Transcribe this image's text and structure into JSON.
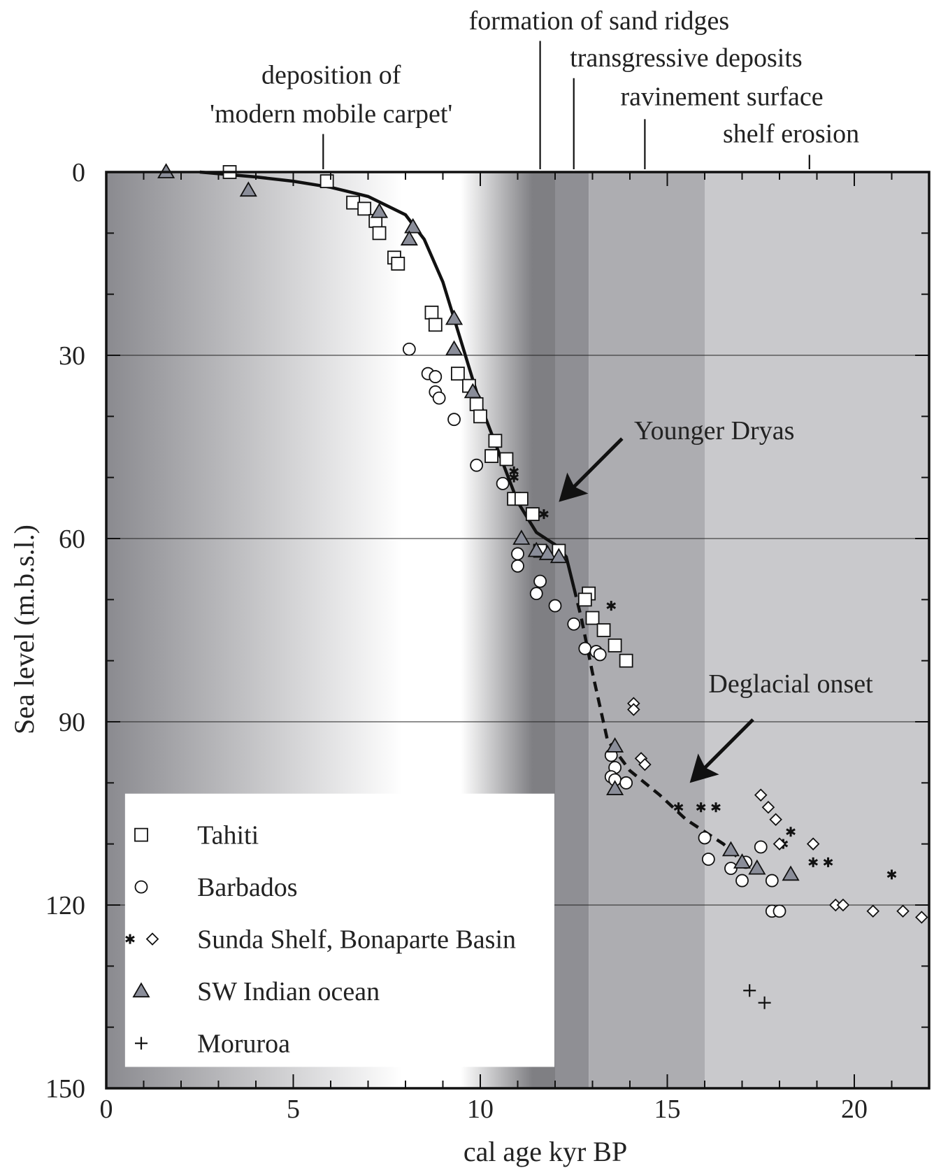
{
  "chart_data": {
    "type": "scatter",
    "xlabel": "cal age kyr BP",
    "ylabel": "Sea level (m.b.s.l.)",
    "xlim": [
      0,
      22
    ],
    "ylim": [
      0,
      150
    ],
    "y_inverted": true,
    "xticks": [
      0,
      5,
      10,
      15,
      20
    ],
    "xticks_minor": [
      1,
      2,
      3,
      4,
      6,
      7,
      8,
      9,
      11,
      12,
      13,
      14,
      16,
      17,
      18,
      19,
      21
    ],
    "yticks": [
      0,
      30,
      60,
      90,
      120,
      150
    ],
    "yticks_minor": [
      10,
      20,
      40,
      50,
      70,
      80,
      100,
      110,
      130,
      140
    ],
    "grid": [
      30,
      60,
      90,
      120
    ],
    "legend": "lower left",
    "shading": [
      {
        "xlim": [
          0,
          12
        ],
        "gradient": [
          [
            0,
            "#8a8a8f"
          ],
          [
            0.66,
            "#ffffff"
          ],
          [
            0.79,
            "#ffffff"
          ],
          [
            0.95,
            "#7f7f83"
          ],
          [
            1,
            "#7f7f83"
          ]
        ]
      },
      {
        "xlim": [
          12,
          12.9
        ],
        "color": "#8f8f94"
      },
      {
        "xlim": [
          12.9,
          16
        ],
        "color": "#adadb1"
      },
      {
        "xlim": [
          16,
          22
        ],
        "color": "#c9c9cc"
      }
    ],
    "phases": [
      {
        "lines": [
          "deposition of",
          "'modern mobile carpet'"
        ],
        "x": 5.8
      },
      {
        "lines": [
          "formation of sand ridges"
        ],
        "x": 11.6
      },
      {
        "lines": [
          "transgressive deposits"
        ],
        "x": 12.5
      },
      {
        "lines": [
          "ravinement surface"
        ],
        "x": 14.4
      },
      {
        "lines": [
          "shelf erosion"
        ],
        "x": 18.8
      }
    ],
    "annotations": [
      {
        "text": "Younger Dryas",
        "x": 12.1,
        "y": 54
      },
      {
        "text": "Deglacial onset",
        "x": 15.6,
        "y": 100
      }
    ],
    "curves": [
      {
        "style": "solid",
        "color": "#111111",
        "x": [
          2.5,
          4,
          5,
          6,
          7,
          8,
          8.5,
          9,
          9.5,
          10,
          10.5,
          11,
          11.5,
          12,
          12.3,
          12.5
        ],
        "y": [
          0,
          0.8,
          1.5,
          2.5,
          4,
          7,
          11,
          18,
          28,
          38,
          46,
          54,
          59,
          61,
          63,
          68
        ]
      },
      {
        "style": "dashed",
        "color": "#111111",
        "x": [
          12.5,
          12.7,
          13.0,
          13.4,
          14,
          14.8,
          15.5,
          16.5,
          17.2
        ],
        "y": [
          68,
          73,
          82,
          93,
          98,
          102,
          106,
          110,
          114
        ]
      }
    ],
    "series": [
      {
        "name": "Tahiti",
        "marker": "square",
        "color": "#ffffff",
        "x": [
          3.3,
          5.9,
          6.6,
          6.9,
          7.2,
          7.3,
          7.7,
          7.8,
          8.7,
          8.8,
          9.4,
          9.7,
          9.9,
          10.0,
          10.4,
          10.3,
          10.7,
          10.9,
          11.1,
          11.4,
          11.6,
          12.1,
          12.9,
          12.8,
          13.0,
          13.3,
          13.6,
          13.9
        ],
        "y": [
          0,
          1.5,
          5,
          6,
          8,
          10,
          14,
          15,
          23,
          25,
          33,
          35,
          38,
          40,
          44,
          46.5,
          47,
          53.5,
          53.5,
          56,
          62,
          62,
          69,
          70,
          73,
          75,
          77.5,
          80
        ]
      },
      {
        "name": "Barbados",
        "marker": "circle",
        "color": "#ffffff",
        "x": [
          8.1,
          8.6,
          8.8,
          8.8,
          8.9,
          9.3,
          9.9,
          10.6,
          11.0,
          11.0,
          11.6,
          11.5,
          12.0,
          12.5,
          12.8,
          13.1,
          13.2,
          13.5,
          13.6,
          13.5,
          13.6,
          13.9,
          16.0,
          16.1,
          16.7,
          17.1,
          17.0,
          17.5,
          17.8,
          17.8,
          18.0
        ],
        "y": [
          29,
          33,
          33.5,
          36,
          37,
          40.5,
          48,
          51,
          62.5,
          64.5,
          67,
          69,
          71,
          74,
          78,
          78.5,
          79,
          95.5,
          97.5,
          99,
          99.5,
          100,
          109,
          112.5,
          114,
          113,
          116,
          110.5,
          116,
          121,
          121
        ]
      },
      {
        "name": "Sunda Shelf, Bonaparte Basin",
        "marker": "star",
        "color": "#111111",
        "x": [
          10.9,
          10.9,
          11.7,
          13.5,
          15.3,
          15.9,
          16.3,
          18.3,
          18.1,
          18.9,
          19.3,
          21.0
        ],
        "y": [
          49,
          50,
          56,
          71,
          104,
          104,
          104,
          108,
          110,
          113,
          113,
          115
        ]
      },
      {
        "marker": "diamond",
        "color": "#ffffff",
        "x": [
          14.1,
          14.1,
          14.3,
          14.4,
          17.5,
          17.7,
          17.9,
          18.0,
          18.9,
          19.5,
          19.7,
          20.5,
          21.3,
          21.8
        ],
        "y": [
          87,
          88,
          96,
          97,
          102,
          104,
          106,
          110,
          110,
          120,
          120,
          121,
          121,
          122
        ]
      },
      {
        "name": "SW Indian ocean",
        "marker": "triangle",
        "color": "#8a8d99",
        "x": [
          1.6,
          3.8,
          7.3,
          8.2,
          8.1,
          9.3,
          9.3,
          9.8,
          11.1,
          11.5,
          11.8,
          12.1,
          13.6,
          13.6,
          16.7,
          17.0,
          17.4,
          18.3
        ],
        "y": [
          0,
          3,
          6.5,
          9,
          11,
          24,
          29,
          36,
          60,
          62,
          62.5,
          63,
          94,
          101,
          111,
          113,
          114,
          115
        ]
      },
      {
        "name": "Moruroa",
        "marker": "plus",
        "color": "#111111",
        "x": [
          17.2,
          17.6
        ],
        "y": [
          134,
          136
        ]
      }
    ]
  }
}
